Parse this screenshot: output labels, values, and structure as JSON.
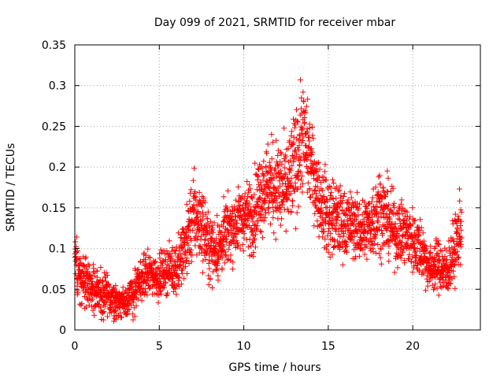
{
  "chart_data": {
    "type": "scatter",
    "title": "Day 099 of 2021, SRMTID for receiver mbar",
    "xlabel": "GPS time / hours",
    "ylabel": "SRMTID / TECUs",
    "xlim": [
      0,
      24
    ],
    "ylim": [
      0,
      0.35
    ],
    "xticks": [
      0,
      5,
      10,
      15,
      20
    ],
    "xtick_labels": [
      "0",
      "5",
      "10",
      "15",
      "20"
    ],
    "yticks": [
      0,
      0.05,
      0.1,
      0.15,
      0.2,
      0.25,
      0.3,
      0.35
    ],
    "ytick_labels": [
      "0",
      "0.05",
      "0.1",
      "0.15",
      "0.2",
      "0.25",
      "0.3",
      "0.35"
    ],
    "grid": true,
    "marker": "+",
    "color": "#ff0000",
    "envelope": {
      "hours": [
        0,
        0.5,
        1,
        1.5,
        2,
        2.5,
        3,
        3.5,
        4,
        4.5,
        5,
        5.5,
        6,
        6.5,
        7,
        7.5,
        8,
        8.5,
        9,
        9.5,
        10,
        10.5,
        11,
        11.5,
        12,
        12.5,
        13,
        13.5,
        14,
        14.5,
        15,
        15.5,
        16,
        16.5,
        17,
        17.5,
        18,
        18.5,
        19,
        19.5,
        20,
        20.5,
        21,
        21.5,
        22,
        22.5,
        23
      ],
      "median": [
        0.085,
        0.06,
        0.05,
        0.045,
        0.04,
        0.035,
        0.035,
        0.045,
        0.065,
        0.07,
        0.065,
        0.075,
        0.075,
        0.1,
        0.14,
        0.13,
        0.1,
        0.1,
        0.12,
        0.13,
        0.14,
        0.14,
        0.17,
        0.18,
        0.175,
        0.17,
        0.2,
        0.24,
        0.2,
        0.16,
        0.14,
        0.135,
        0.13,
        0.13,
        0.12,
        0.13,
        0.15,
        0.135,
        0.12,
        0.12,
        0.11,
        0.1,
        0.075,
        0.08,
        0.07,
        0.1,
        0.14
      ],
      "spread": [
        0.03,
        0.025,
        0.02,
        0.02,
        0.02,
        0.015,
        0.015,
        0.02,
        0.02,
        0.02,
        0.02,
        0.02,
        0.025,
        0.03,
        0.04,
        0.035,
        0.03,
        0.03,
        0.03,
        0.03,
        0.03,
        0.035,
        0.04,
        0.04,
        0.045,
        0.045,
        0.05,
        0.05,
        0.04,
        0.035,
        0.04,
        0.035,
        0.03,
        0.03,
        0.03,
        0.035,
        0.04,
        0.035,
        0.03,
        0.03,
        0.03,
        0.03,
        0.02,
        0.025,
        0.025,
        0.03,
        0.035
      ]
    },
    "samples_per_hour": 120,
    "data_end_hour": 22.9
  }
}
